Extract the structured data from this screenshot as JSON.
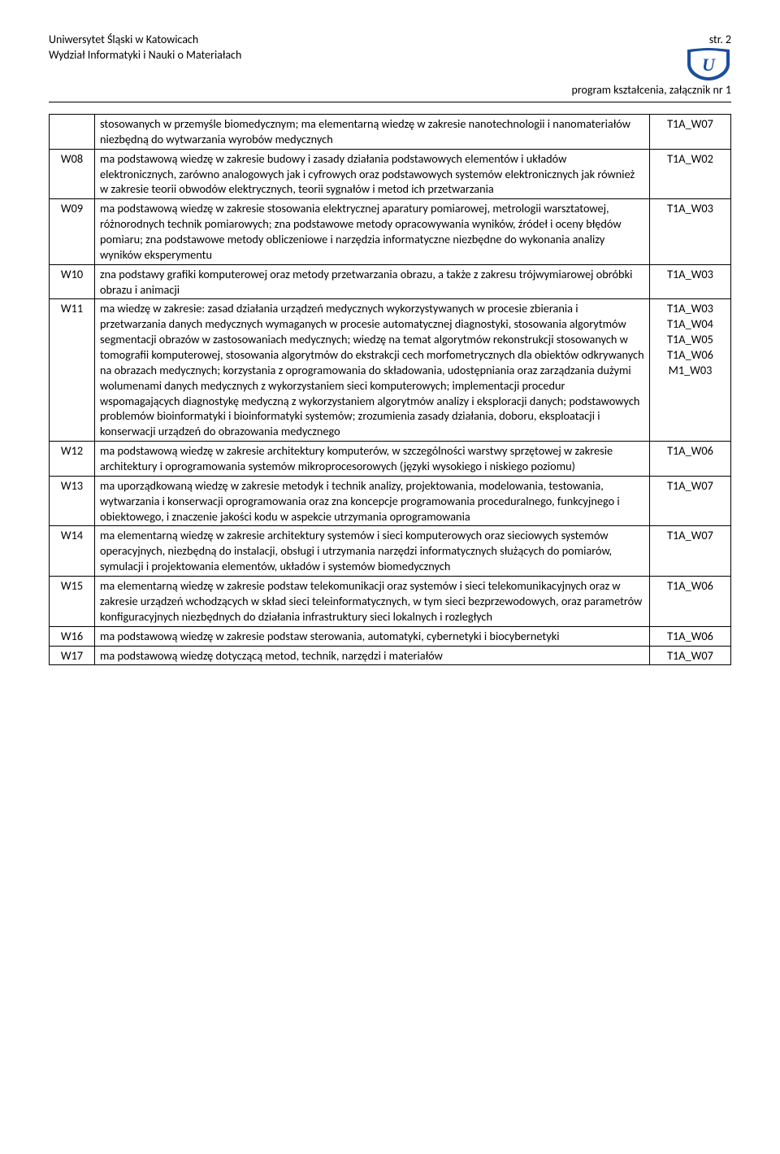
{
  "header": {
    "university": "Uniwersytet Śląski w Katowicach",
    "faculty": "Wydział Informatyki i Nauki o Materiałach",
    "pageLabel": "str. 2",
    "subheader": "program kształcenia, załącznik nr 1"
  },
  "logo": {
    "accentColor": "#1b4f9c",
    "letter": "U"
  },
  "rows": [
    {
      "code": "",
      "desc": "stosowanych w przemyśle biomedycznym; ma elementarną wiedzę w zakresie nanotechnologii i nanomateriałów niezbędną do wytwarzania wyrobów medycznych",
      "refs": [
        "T1A_W07"
      ]
    },
    {
      "code": "W08",
      "desc": "ma podstawową wiedzę w zakresie budowy i zasady działania podstawowych elementów i układów elektronicznych, zarówno analogowych jak i cyfrowych oraz podstawowych systemów elektronicznych jak również w zakresie teorii obwodów elektrycznych, teorii sygnałów i metod ich przetwarzania",
      "refs": [
        "T1A_W02"
      ]
    },
    {
      "code": "W09",
      "desc": "ma podstawową wiedzę w zakresie stosowania elektrycznej aparatury pomiarowej, metrologii warsztatowej, różnorodnych technik pomiarowych; zna podstawowe metody opracowywania wyników, źródeł i oceny błędów pomiaru; zna podstawowe metody obliczeniowe i narzędzia informatyczne niezbędne do wykonania analizy wyników eksperymentu",
      "refs": [
        "T1A_W03"
      ]
    },
    {
      "code": "W10",
      "desc": "zna podstawy grafiki komputerowej oraz metody przetwarzania obrazu, a także z zakresu trójwymiarowej obróbki obrazu i animacji",
      "refs": [
        "T1A_W03"
      ]
    },
    {
      "code": "W11",
      "desc": "ma wiedzę w zakresie: zasad działania urządzeń medycznych wykorzystywanych w procesie zbierania i przetwarzania danych medycznych wymaganych w procesie automatycznej diagnostyki, stosowania algorytmów segmentacji obrazów w zastosowaniach medycznych; wiedzę na temat algorytmów rekonstrukcji stosowanych w tomografii komputerowej, stosowania algorytmów do ekstrakcji cech morfometrycznych dla obiektów odkrywanych na obrazach medycznych; korzystania z oprogramowania do składowania, udostępniania oraz zarządzania dużymi wolumenami danych medycznych z wykorzystaniem sieci komputerowych; implementacji procedur wspomagających diagnostykę medyczną z wykorzystaniem algorytmów analizy i eksploracji danych; podstawowych problemów bioinformatyki i bioinformatyki systemów; zrozumienia zasady działania, doboru, eksploatacji i konserwacji urządzeń do obrazowania medycznego",
      "refs": [
        "T1A_W03",
        "T1A_W04",
        "T1A_W05",
        "T1A_W06",
        "M1_W03"
      ]
    },
    {
      "code": "W12",
      "desc": "ma podstawową wiedzę w zakresie architektury komputerów, w szczególności warstwy sprzętowej w zakresie architektury i oprogramowania systemów mikroprocesorowych (języki wysokiego i niskiego poziomu)",
      "refs": [
        "T1A_W06"
      ]
    },
    {
      "code": "W13",
      "desc": "ma uporządkowaną wiedzę w zakresie metodyk i technik analizy, projektowania, modelowania, testowania, wytwarzania i konserwacji oprogramowania oraz zna koncepcje programowania proceduralnego, funkcyjnego i obiektowego, i znaczenie jakości kodu w aspekcie utrzymania oprogramowania",
      "refs": [
        "T1A_W07"
      ]
    },
    {
      "code": "W14",
      "desc": "ma elementarną wiedzę w zakresie architektury systemów i sieci komputerowych oraz sieciowych systemów operacyjnych, niezbędną do instalacji, obsługi i utrzymania narzędzi informatycznych służących do pomiarów, symulacji i projektowania elementów, układów i systemów biomedycznych",
      "refs": [
        "T1A_W07"
      ]
    },
    {
      "code": "W15",
      "desc": "ma elementarną wiedzę w zakresie podstaw telekomunikacji oraz systemów i sieci telekomunikacyjnych oraz w zakresie urządzeń wchodzących w skład sieci teleinformatycznych, w tym sieci bezprzewodowych, oraz parametrów konfiguracyjnych niezbędnych do działania infrastruktury sieci lokalnych i rozległych",
      "refs": [
        "T1A_W06"
      ]
    },
    {
      "code": "W16",
      "desc": "ma podstawową wiedzę w zakresie podstaw sterowania, automatyki, cybernetyki i biocybernetyki",
      "refs": [
        "T1A_W06"
      ]
    },
    {
      "code": "W17",
      "desc": "ma podstawową wiedzę dotyczącą metod, technik, narzędzi i materiałów",
      "refs": [
        "T1A_W07"
      ]
    }
  ]
}
